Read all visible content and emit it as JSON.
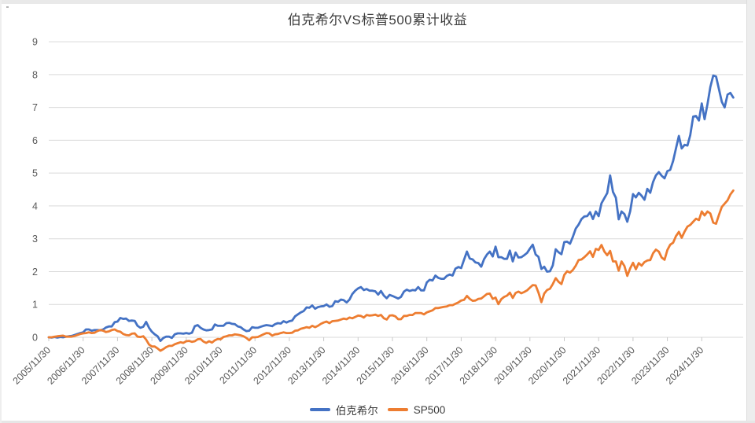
{
  "chart": {
    "title": "伯克希尔VS标普500累计收益",
    "colors": {
      "berkshire": "#4472C4",
      "sp500": "#ED7D31",
      "grid": "#d9d9d9",
      "tick": "#c9c9c9",
      "axis_text": "#595959",
      "title_text": "#3d3d3d"
    }
  },
  "chart_data": {
    "type": "line",
    "title": "伯克希尔VS标普500累计收益",
    "xlabel": "",
    "ylabel": "",
    "ylim": [
      0,
      9
    ],
    "y_tick_step": 1,
    "grid": true,
    "legend_position": "bottom",
    "x_tick_every": 12,
    "x_tick_labels": [
      "2005/11/30",
      "2006/11/30",
      "2007/11/30",
      "2008/11/30",
      "2009/11/30",
      "2010/11/30",
      "2011/11/30",
      "2012/11/30",
      "2013/11/30",
      "2014/11/30",
      "2015/11/30",
      "2016/11/30",
      "2017/11/30",
      "2018/11/30",
      "2019/11/30",
      "2020/11/30",
      "2021/11/30",
      "2022/11/30",
      "2023/11/30",
      "2024/11/30"
    ],
    "x_note": "monthly points from 2005/11/30 through 2025/10, cumulative return multiple",
    "series": [
      {
        "name": "伯克希尔",
        "color": "#4472C4",
        "values": [
          0.0,
          -0.01,
          0.01,
          -0.01,
          0.01,
          0.0,
          0.02,
          0.03,
          0.04,
          0.07,
          0.1,
          0.13,
          0.15,
          0.24,
          0.24,
          0.2,
          0.22,
          0.22,
          0.21,
          0.24,
          0.3,
          0.33,
          0.33,
          0.46,
          0.48,
          0.59,
          0.56,
          0.57,
          0.5,
          0.51,
          0.5,
          0.35,
          0.29,
          0.32,
          0.47,
          0.29,
          0.17,
          0.09,
          0.03,
          -0.11,
          -0.02,
          0.02,
          0.02,
          -0.02,
          0.09,
          0.12,
          0.12,
          0.11,
          0.13,
          0.11,
          0.14,
          0.34,
          0.37,
          0.29,
          0.24,
          0.21,
          0.22,
          0.24,
          0.39,
          0.35,
          0.35,
          0.35,
          0.43,
          0.44,
          0.41,
          0.4,
          0.33,
          0.31,
          0.24,
          0.19,
          0.2,
          0.31,
          0.29,
          0.29,
          0.32,
          0.35,
          0.37,
          0.36,
          0.34,
          0.4,
          0.43,
          0.42,
          0.49,
          0.45,
          0.49,
          0.51,
          0.64,
          0.7,
          0.76,
          0.8,
          0.91,
          0.9,
          0.97,
          0.87,
          0.92,
          0.94,
          0.95,
          1.0,
          0.93,
          0.95,
          1.1,
          1.08,
          1.15,
          1.13,
          1.06,
          1.15,
          1.32,
          1.42,
          1.49,
          1.53,
          1.44,
          1.47,
          1.42,
          1.42,
          1.4,
          1.3,
          1.41,
          1.27,
          1.19,
          1.29,
          1.26,
          1.22,
          1.18,
          1.23,
          1.39,
          1.45,
          1.41,
          1.44,
          1.43,
          1.53,
          1.43,
          1.43,
          1.67,
          1.75,
          1.73,
          1.88,
          1.81,
          1.78,
          1.78,
          1.87,
          1.91,
          1.88,
          2.09,
          2.14,
          2.11,
          2.36,
          2.61,
          2.4,
          2.37,
          2.28,
          2.26,
          2.15,
          2.38,
          2.52,
          2.61,
          2.46,
          2.76,
          2.44,
          2.44,
          2.39,
          2.39,
          2.64,
          2.31,
          2.58,
          2.43,
          2.44,
          2.5,
          2.57,
          2.7,
          2.82,
          2.52,
          2.45,
          2.08,
          2.15,
          2.0,
          2.01,
          2.19,
          2.68,
          2.59,
          2.53,
          2.9,
          2.91,
          2.85,
          3.06,
          3.31,
          3.43,
          3.6,
          3.68,
          3.69,
          3.81,
          3.6,
          3.83,
          3.69,
          4.08,
          4.24,
          4.39,
          4.93,
          4.43,
          4.25,
          3.59,
          3.83,
          3.75,
          3.52,
          3.84,
          4.36,
          4.26,
          4.4,
          4.31,
          4.19,
          4.52,
          4.4,
          4.73,
          4.93,
          5.03,
          4.92,
          4.84,
          5.06,
          5.1,
          5.37,
          5.75,
          6.13,
          5.75,
          5.86,
          5.84,
          6.16,
          6.72,
          6.74,
          6.6,
          7.12,
          6.64,
          7.1,
          7.62,
          7.97,
          7.94,
          7.55,
          7.17,
          7.0,
          7.39,
          7.44,
          7.3
        ]
      },
      {
        "name": "SP500",
        "color": "#ED7D31",
        "values": [
          0.0,
          0.0,
          0.02,
          0.03,
          0.04,
          0.05,
          0.02,
          0.02,
          0.02,
          0.04,
          0.07,
          0.1,
          0.12,
          0.13,
          0.15,
          0.13,
          0.14,
          0.19,
          0.22,
          0.2,
          0.16,
          0.18,
          0.22,
          0.24,
          0.19,
          0.17,
          0.1,
          0.07,
          0.06,
          0.11,
          0.12,
          0.02,
          0.01,
          0.03,
          -0.07,
          -0.22,
          -0.28,
          -0.28,
          -0.34,
          -0.41,
          -0.36,
          -0.3,
          -0.26,
          -0.26,
          -0.21,
          -0.18,
          -0.15,
          -0.17,
          -0.12,
          -0.11,
          -0.14,
          -0.12,
          -0.06,
          -0.05,
          -0.13,
          -0.17,
          -0.12,
          -0.16,
          -0.09,
          -0.05,
          -0.06,
          0.01,
          0.03,
          0.06,
          0.06,
          0.09,
          0.08,
          0.06,
          0.03,
          -0.02,
          -0.09,
          0.0,
          0.0,
          0.01,
          0.05,
          0.09,
          0.13,
          0.12,
          0.05,
          0.09,
          0.1,
          0.13,
          0.15,
          0.13,
          0.13,
          0.14,
          0.2,
          0.21,
          0.26,
          0.28,
          0.31,
          0.29,
          0.35,
          0.31,
          0.35,
          0.41,
          0.45,
          0.48,
          0.43,
          0.49,
          0.5,
          0.51,
          0.54,
          0.57,
          0.55,
          0.6,
          0.58,
          0.62,
          0.66,
          0.65,
          0.6,
          0.68,
          0.66,
          0.67,
          0.69,
          0.65,
          0.68,
          0.58,
          0.54,
          0.66,
          0.67,
          0.64,
          0.55,
          0.55,
          0.65,
          0.65,
          0.68,
          0.68,
          0.74,
          0.74,
          0.74,
          0.7,
          0.76,
          0.79,
          0.82,
          0.89,
          0.89,
          0.91,
          0.93,
          0.94,
          0.98,
          0.98,
          1.02,
          1.06,
          1.12,
          1.14,
          1.26,
          1.17,
          1.11,
          1.12,
          1.17,
          1.18,
          1.25,
          1.32,
          1.33,
          1.17,
          1.21,
          1.01,
          1.16,
          1.23,
          1.27,
          1.36,
          1.2,
          1.35,
          1.39,
          1.34,
          1.38,
          1.43,
          1.51,
          1.59,
          1.58,
          1.36,
          1.07,
          1.33,
          1.44,
          1.48,
          1.62,
          1.8,
          1.69,
          1.62,
          1.9,
          2.01,
          1.97,
          2.05,
          2.18,
          2.35,
          2.37,
          2.44,
          2.52,
          2.62,
          2.45,
          2.69,
          2.66,
          2.81,
          2.61,
          2.5,
          2.63,
          2.31,
          2.31,
          2.03,
          2.31,
          2.17,
          1.87,
          2.1,
          2.27,
          2.07,
          2.26,
          2.18,
          2.29,
          2.34,
          2.35,
          2.56,
          2.67,
          2.61,
          2.43,
          2.36,
          2.66,
          2.82,
          2.88,
          3.08,
          3.21,
          3.03,
          3.22,
          3.37,
          3.42,
          3.52,
          3.61,
          3.57,
          3.83,
          3.71,
          3.83,
          3.77,
          3.49,
          3.46,
          3.73,
          3.97,
          4.07,
          4.17,
          4.35,
          4.47
        ]
      }
    ]
  }
}
